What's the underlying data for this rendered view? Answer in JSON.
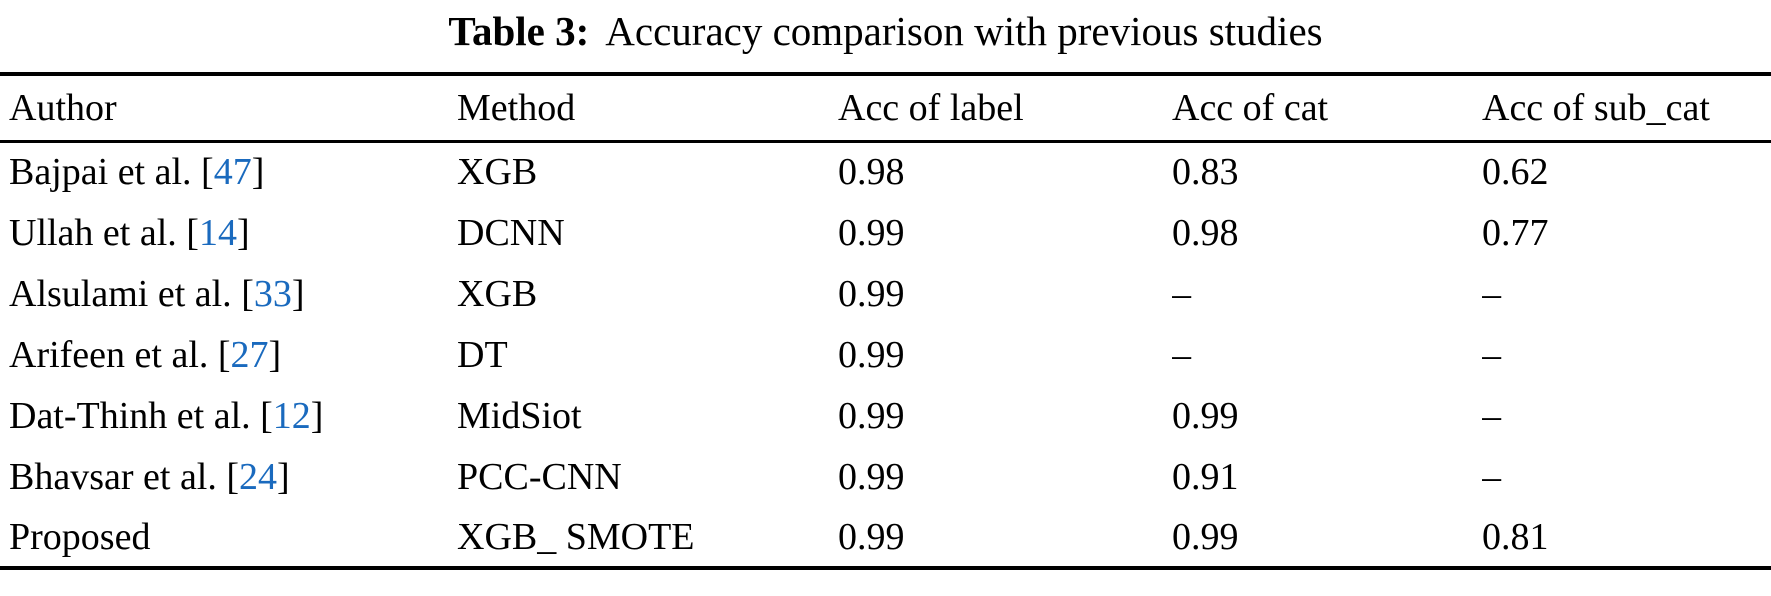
{
  "caption": {
    "label": "Table 3:",
    "text": "Accuracy comparison with previous studies"
  },
  "colors": {
    "citation_blue": "#1a6abe",
    "text": "#000000",
    "rule": "#000000",
    "background": "#ffffff"
  },
  "table": {
    "columns": [
      "Author",
      "Method",
      "Acc of label",
      "Acc of cat",
      "Acc of sub_cat"
    ],
    "rows": [
      {
        "author": "Bajpai et al.",
        "cite_open": " [",
        "cite": "47",
        "cite_close": "]",
        "method": "XGB",
        "acc_label": "0.98",
        "acc_cat": "0.83",
        "acc_sub_cat": "0.62"
      },
      {
        "author": "Ullah et al.",
        "cite_open": " [",
        "cite": "14",
        "cite_close": "]",
        "method": "DCNN",
        "acc_label": "0.99",
        "acc_cat": "0.98",
        "acc_sub_cat": "0.77"
      },
      {
        "author": "Alsulami et al.",
        "cite_open": " [",
        "cite": "33",
        "cite_close": "]",
        "method": "XGB",
        "acc_label": "0.99",
        "acc_cat": "–",
        "acc_sub_cat": "–"
      },
      {
        "author": "Arifeen et al.",
        "cite_open": " [",
        "cite": "27",
        "cite_close": "]",
        "method": "DT",
        "acc_label": "0.99",
        "acc_cat": "–",
        "acc_sub_cat": "–"
      },
      {
        "author": "Dat-Thinh et al.",
        "cite_open": " [",
        "cite": "12",
        "cite_close": "]",
        "method": "MidSiot",
        "acc_label": "0.99",
        "acc_cat": "0.99",
        "acc_sub_cat": "–"
      },
      {
        "author": "Bhavsar et al.",
        "cite_open": " [",
        "cite": "24",
        "cite_close": "]",
        "method": "PCC-CNN",
        "acc_label": "0.99",
        "acc_cat": "0.91",
        "acc_sub_cat": "–"
      },
      {
        "author": "Proposed",
        "cite_open": "",
        "cite": "",
        "cite_close": "",
        "method": "XGB_ SMOTE",
        "acc_label": "0.99",
        "acc_cat": "0.99",
        "acc_sub_cat": "0.81"
      }
    ]
  }
}
